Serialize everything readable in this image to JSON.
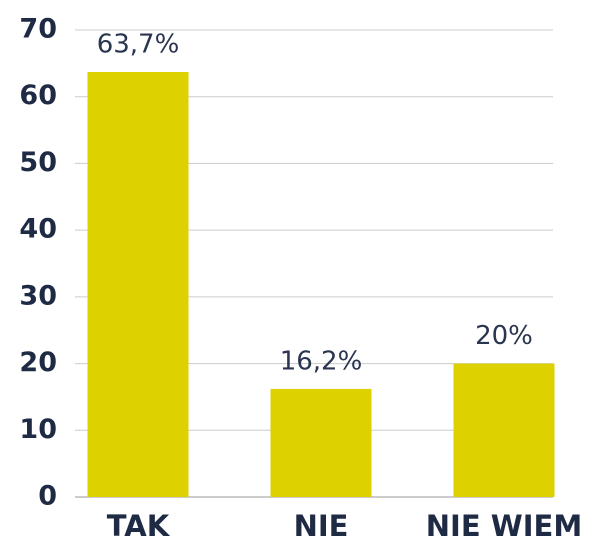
{
  "chart_data": {
    "type": "bar",
    "categories": [
      "TAK",
      "NIE",
      "NIE WIEM"
    ],
    "values": [
      63.7,
      16.2,
      20
    ],
    "value_labels": [
      "63,7%",
      "16,2%",
      "20%"
    ],
    "color": "#ddd200",
    "ylim": [
      0,
      70
    ],
    "yticks": [
      0,
      10,
      20,
      30,
      40,
      50,
      60,
      70
    ],
    "grid": true
  }
}
